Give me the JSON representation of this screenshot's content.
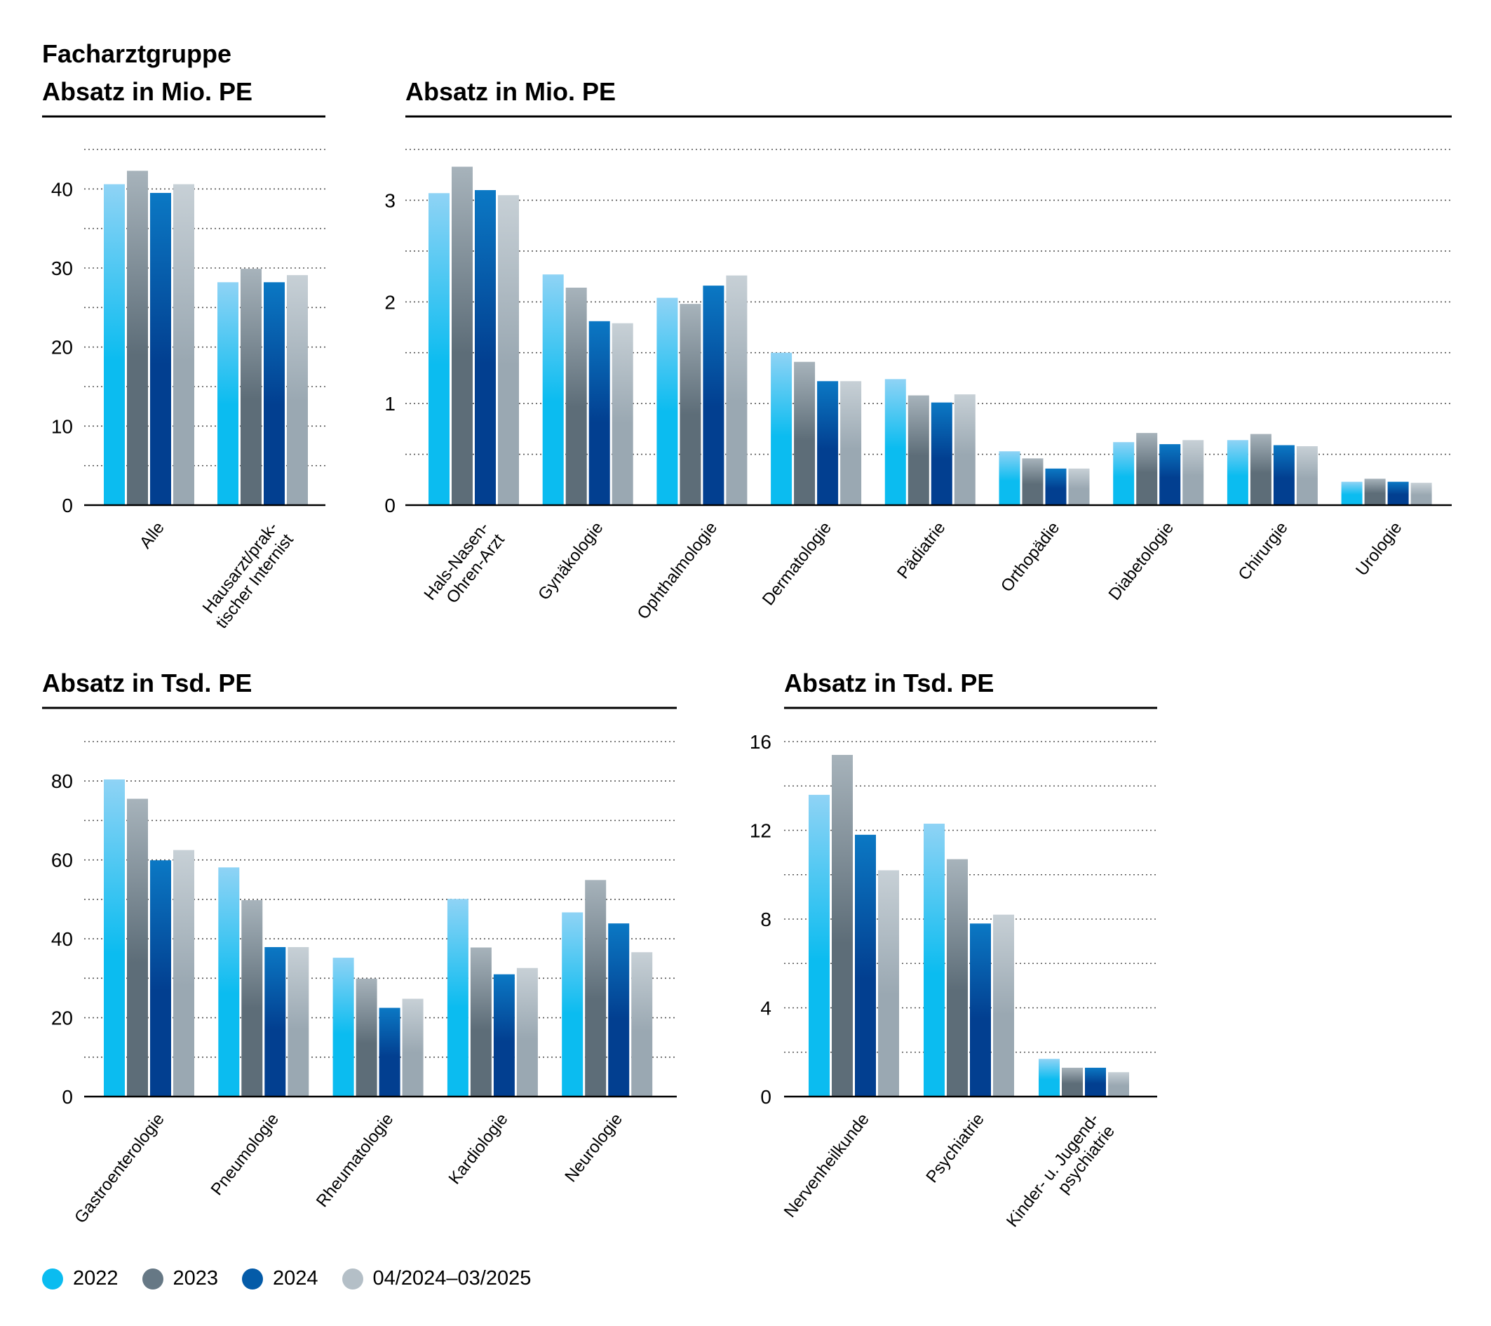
{
  "group_heading": "Facharztgruppe",
  "colors": {
    "2022": {
      "top": "#8fd3f5",
      "bottom": "#0bbcf0"
    },
    "2023": {
      "top": "#a7b3bb",
      "bottom": "#5d6d78"
    },
    "2024": {
      "top": "#0b78c4",
      "bottom": "#023f90"
    },
    "04/2024–03/2025": {
      "top": "#c7d0d6",
      "bottom": "#9aa8b2"
    }
  },
  "legend": [
    {
      "label": "2022",
      "color": "#0bbcf0"
    },
    {
      "label": "2023",
      "color": "#667885"
    },
    {
      "label": "2024",
      "color": "#045ba8"
    },
    {
      "label": "04/2024–03/2025",
      "color": "#b4bfc7"
    }
  ],
  "chart_data": [
    {
      "type": "bar",
      "title": "Absatz in Mio. PE",
      "ylim": [
        0,
        45
      ],
      "yticks": [
        0,
        10,
        20,
        30,
        40
      ],
      "grid": true,
      "categories": [
        [
          "Alle"
        ],
        [
          "Hausarzt/prak-",
          "tischer Internist"
        ]
      ],
      "series": [
        {
          "name": "2022",
          "values": [
            40.6,
            28.2
          ]
        },
        {
          "name": "2023",
          "values": [
            42.3,
            29.9
          ]
        },
        {
          "name": "2024",
          "values": [
            39.5,
            28.2
          ]
        },
        {
          "name": "04/2024–03/2025",
          "values": [
            40.6,
            29.1
          ]
        }
      ]
    },
    {
      "type": "bar",
      "title": "Absatz in Mio. PE",
      "ylim": [
        0,
        3.5
      ],
      "yticks": [
        0,
        1,
        2,
        3
      ],
      "grid": true,
      "categories": [
        [
          "Hals-Nasen-",
          "Ohren-Arzt"
        ],
        [
          "Gynäkologie"
        ],
        [
          "Ophthalmologie"
        ],
        [
          "Dermatologie"
        ],
        [
          "Pädiatrie"
        ],
        [
          "Orthopädie"
        ],
        [
          "Diabetologie"
        ],
        [
          "Chirurgie"
        ],
        [
          "Urologie"
        ]
      ],
      "series": [
        {
          "name": "2022",
          "values": [
            3.07,
            2.27,
            2.04,
            1.5,
            1.24,
            0.53,
            0.62,
            0.64,
            0.23
          ]
        },
        {
          "name": "2023",
          "values": [
            3.33,
            2.14,
            1.98,
            1.41,
            1.08,
            0.46,
            0.71,
            0.7,
            0.26
          ]
        },
        {
          "name": "2024",
          "values": [
            3.1,
            1.81,
            2.16,
            1.22,
            1.01,
            0.36,
            0.6,
            0.59,
            0.23
          ]
        },
        {
          "name": "04/2024–03/2025",
          "values": [
            3.05,
            1.79,
            2.26,
            1.22,
            1.09,
            0.36,
            0.64,
            0.58,
            0.22
          ]
        }
      ]
    },
    {
      "type": "bar",
      "title": "Absatz in Tsd. PE",
      "ylim": [
        0,
        90
      ],
      "yticks": [
        0,
        20,
        40,
        60,
        80
      ],
      "grid": true,
      "categories": [
        [
          "Gastroenterologie"
        ],
        [
          "Pneumologie"
        ],
        [
          "Rheumatologie"
        ],
        [
          "Kardiologie"
        ],
        [
          "Neurologie"
        ]
      ],
      "series": [
        {
          "name": "2022",
          "values": [
            80.4,
            58.1,
            35.2,
            50.1,
            46.7
          ]
        },
        {
          "name": "2023",
          "values": [
            75.5,
            49.8,
            29.9,
            37.8,
            54.9
          ]
        },
        {
          "name": "2024",
          "values": [
            59.9,
            37.9,
            22.5,
            31.0,
            43.9
          ]
        },
        {
          "name": "04/2024–03/2025",
          "values": [
            62.5,
            37.9,
            24.8,
            32.6,
            36.6
          ]
        }
      ]
    },
    {
      "type": "bar",
      "title": "Absatz in Tsd. PE",
      "ylim": [
        0,
        16
      ],
      "yticks": [
        0,
        4,
        8,
        12,
        16
      ],
      "grid": true,
      "categories": [
        [
          "Nervenheilkunde"
        ],
        [
          "Psychiatrie"
        ],
        [
          "Kinder- u. Jugend-",
          "psychiatrie"
        ]
      ],
      "series": [
        {
          "name": "2022",
          "values": [
            13.6,
            12.3,
            1.7
          ]
        },
        {
          "name": "2023",
          "values": [
            15.4,
            10.7,
            1.3
          ]
        },
        {
          "name": "2024",
          "values": [
            11.8,
            7.8,
            1.3
          ]
        },
        {
          "name": "04/2024–03/2025",
          "values": [
            10.2,
            8.2,
            1.1
          ]
        }
      ]
    }
  ]
}
